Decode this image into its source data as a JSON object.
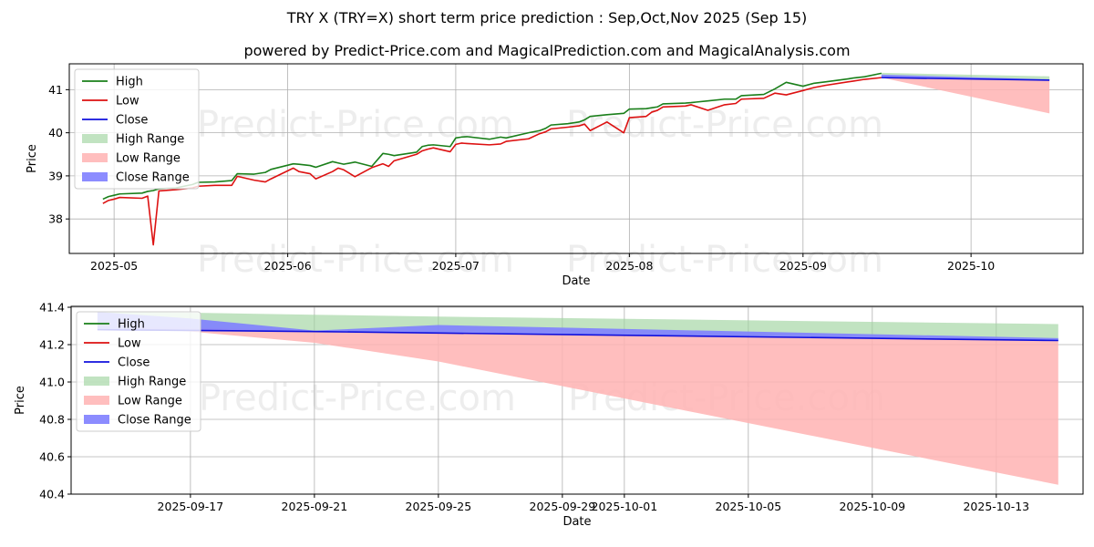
{
  "titles": {
    "main": "TRY X (TRY=X) short term price prediction : Sep,Oct,Nov 2025 (Sep 15)",
    "sub": "powered by Predict-Price.com and MagicalPrediction.com and MagicalAnalysis.com"
  },
  "watermark": "Predict-Price.com",
  "colors": {
    "high": "#1a7f1a",
    "low": "#dd1111",
    "close": "#1010dd",
    "high_range": "#9fd49f",
    "low_range": "#ffb3b3",
    "close_range": "#8080ff",
    "grid": "#b0b0b0"
  },
  "chart_data": [
    {
      "type": "line",
      "id": "top",
      "xlabel": "Date",
      "ylabel": "Price",
      "xlim": [
        "2025-04-23",
        "2025-10-21"
      ],
      "ylim": [
        37.2,
        41.6
      ],
      "x_ticks": [
        {
          "date": "2025-05-01",
          "label": "2025-05"
        },
        {
          "date": "2025-06-01",
          "label": "2025-06"
        },
        {
          "date": "2025-07-01",
          "label": "2025-07"
        },
        {
          "date": "2025-08-01",
          "label": "2025-08"
        },
        {
          "date": "2025-09-01",
          "label": "2025-09"
        },
        {
          "date": "2025-10-01",
          "label": "2025-10"
        }
      ],
      "y_ticks": [
        38,
        39,
        40,
        41
      ],
      "legend": [
        "High",
        "Low",
        "Close",
        "High Range",
        "Low Range",
        "Close Range"
      ],
      "legend_position": "upper-left",
      "history_dates": [
        "2025-04-29",
        "2025-04-30",
        "2025-05-01",
        "2025-05-02",
        "2025-05-06",
        "2025-05-07",
        "2025-05-08",
        "2025-05-09",
        "2025-05-12",
        "2025-05-15",
        "2025-05-16",
        "2025-05-19",
        "2025-05-22",
        "2025-05-23",
        "2025-05-26",
        "2025-05-28",
        "2025-05-29",
        "2025-06-02",
        "2025-06-03",
        "2025-06-05",
        "2025-06-06",
        "2025-06-09",
        "2025-06-10",
        "2025-06-11",
        "2025-06-13",
        "2025-06-16",
        "2025-06-18",
        "2025-06-19",
        "2025-06-20",
        "2025-06-24",
        "2025-06-25",
        "2025-06-26",
        "2025-06-27",
        "2025-06-30",
        "2025-07-01",
        "2025-07-02",
        "2025-07-03",
        "2025-07-07",
        "2025-07-09",
        "2025-07-10",
        "2025-07-14",
        "2025-07-16",
        "2025-07-17",
        "2025-07-18",
        "2025-07-21",
        "2025-07-23",
        "2025-07-24",
        "2025-07-25",
        "2025-07-28",
        "2025-07-31",
        "2025-08-01",
        "2025-08-04",
        "2025-08-05",
        "2025-08-06",
        "2025-08-07",
        "2025-08-11",
        "2025-08-12",
        "2025-08-15",
        "2025-08-18",
        "2025-08-20",
        "2025-08-21",
        "2025-08-25",
        "2025-08-27",
        "2025-08-29",
        "2025-09-01",
        "2025-09-03",
        "2025-09-05",
        "2025-09-09",
        "2025-09-10",
        "2025-09-12",
        "2025-09-15"
      ],
      "series": [
        {
          "name": "High",
          "values": [
            38.46,
            38.52,
            38.55,
            38.58,
            38.6,
            38.64,
            38.66,
            38.7,
            38.72,
            38.8,
            38.85,
            38.86,
            38.89,
            39.05,
            39.04,
            39.08,
            39.15,
            39.28,
            39.27,
            39.24,
            39.2,
            39.33,
            39.3,
            39.27,
            39.32,
            39.22,
            39.52,
            39.5,
            39.47,
            39.55,
            39.68,
            39.71,
            39.72,
            39.68,
            39.88,
            39.9,
            39.91,
            39.85,
            39.9,
            39.88,
            40.0,
            40.05,
            40.1,
            40.18,
            40.21,
            40.25,
            40.3,
            40.38,
            40.42,
            40.45,
            40.55,
            40.56,
            40.58,
            40.6,
            40.67,
            40.69,
            40.7,
            40.74,
            40.78,
            40.78,
            40.86,
            40.89,
            41.02,
            41.17,
            41.08,
            41.15,
            41.18,
            41.25,
            41.27,
            41.3,
            41.38
          ]
        },
        {
          "name": "Low",
          "values": [
            38.36,
            38.43,
            38.46,
            38.5,
            38.48,
            38.53,
            37.4,
            38.65,
            38.68,
            38.72,
            38.76,
            38.78,
            38.78,
            38.99,
            38.9,
            38.86,
            38.93,
            39.18,
            39.1,
            39.05,
            38.93,
            39.1,
            39.18,
            39.14,
            38.98,
            39.19,
            39.28,
            39.22,
            39.35,
            39.5,
            39.58,
            39.62,
            39.65,
            39.56,
            39.73,
            39.76,
            39.75,
            39.72,
            39.74,
            39.8,
            39.86,
            39.98,
            40.02,
            40.09,
            40.13,
            40.16,
            40.2,
            40.05,
            40.25,
            40.0,
            40.35,
            40.38,
            40.48,
            40.52,
            40.6,
            40.62,
            40.65,
            40.52,
            40.65,
            40.68,
            40.78,
            40.8,
            40.92,
            40.88,
            40.98,
            41.05,
            41.1,
            41.18,
            41.2,
            41.24,
            41.28
          ]
        }
      ],
      "forecast_dates": [
        "2025-09-15",
        "2025-10-15"
      ],
      "high_range": {
        "upper": [
          41.39,
          41.31
        ],
        "lower": [
          41.28,
          41.22
        ]
      },
      "low_range": {
        "upper": [
          41.3,
          41.23
        ],
        "lower": [
          41.28,
          40.45
        ]
      },
      "close_range": {
        "upper": [
          41.35,
          41.24
        ],
        "lower": [
          41.28,
          41.22
        ]
      },
      "close_forecast": [
        41.28,
        41.22
      ]
    },
    {
      "type": "line",
      "id": "bottom",
      "xlabel": "Date",
      "ylabel": "Price",
      "xlim": [
        "2025-09-13.15",
        "2025-10-15.8"
      ],
      "ylim": [
        40.4,
        41.405
      ],
      "x_ticks": [
        {
          "date": "2025-09-17",
          "label": "2025-09-17"
        },
        {
          "date": "2025-09-21",
          "label": "2025-09-21"
        },
        {
          "date": "2025-09-25",
          "label": "2025-09-25"
        },
        {
          "date": "2025-09-29",
          "label": "2025-09-29"
        },
        {
          "date": "2025-10-01",
          "label": "2025-10-01"
        },
        {
          "date": "2025-10-05",
          "label": "2025-10-05"
        },
        {
          "date": "2025-10-09",
          "label": "2025-10-09"
        },
        {
          "date": "2025-10-13",
          "label": "2025-10-13"
        }
      ],
      "y_ticks": [
        {
          "value": 40.4,
          "label": "40.4"
        },
        {
          "value": 40.6,
          "label": "40.6"
        },
        {
          "value": 40.8,
          "label": "40.8"
        },
        {
          "value": 41.0,
          "label": "41.0"
        },
        {
          "value": 41.2,
          "label": "41.2"
        },
        {
          "value": 41.4,
          "label": "41.4"
        }
      ],
      "legend": [
        "High",
        "Low",
        "Close",
        "High Range",
        "Low Range",
        "Close Range"
      ],
      "legend_position": "upper-left",
      "forecast_dates": [
        "2025-09-14",
        "2025-09-17",
        "2025-09-21",
        "2025-09-25",
        "2025-10-15"
      ],
      "high_range": {
        "upper": [
          41.375,
          41.371,
          41.36,
          41.35,
          41.31
        ],
        "lower": [
          41.28,
          41.276,
          41.27,
          41.262,
          41.222
        ]
      },
      "low_range": {
        "upper": [
          41.3,
          41.29,
          41.275,
          41.262,
          41.222
        ],
        "lower": [
          41.3,
          41.27,
          41.21,
          41.11,
          40.45
        ]
      },
      "close_range": {
        "upper": [
          41.375,
          41.34,
          41.275,
          41.305,
          41.235
        ],
        "lower": [
          41.28,
          41.276,
          41.27,
          41.262,
          41.222
        ]
      },
      "close_forecast": [
        41.28,
        41.276,
        41.27,
        41.262,
        41.222
      ]
    }
  ]
}
